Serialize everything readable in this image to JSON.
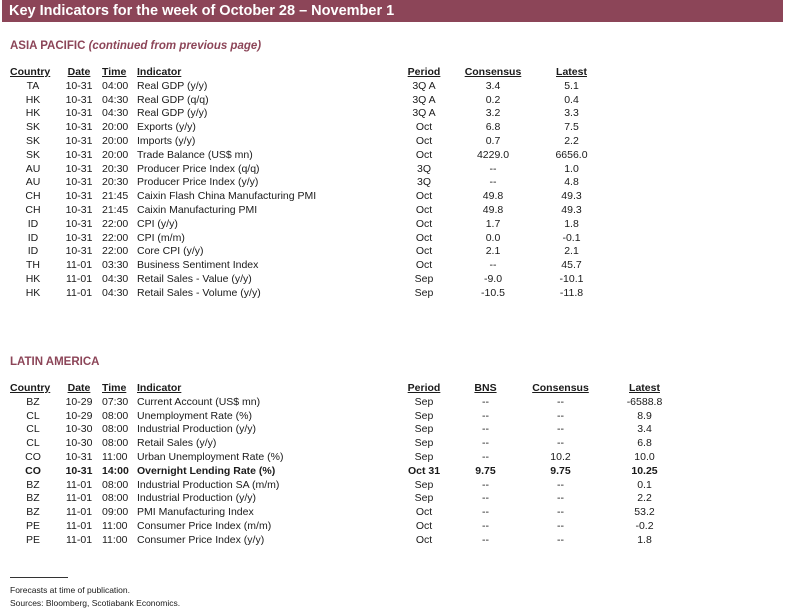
{
  "header": {
    "title": "Key Indicators for the week of October 28 – November 1"
  },
  "asia": {
    "title": "ASIA PACIFIC",
    "note": "(continued from previous page)",
    "headers": {
      "country": "Country",
      "date": "Date",
      "time": "Time",
      "indicator": "Indicator",
      "period": "Period",
      "consensus": "Consensus",
      "latest": "Latest"
    },
    "rows": [
      {
        "country": "TA",
        "date": "10-31",
        "time": "04:00",
        "indicator": "Real GDP (y/y)",
        "period": "3Q A",
        "consensus": "3.4",
        "latest": "5.1"
      },
      {
        "country": "HK",
        "date": "10-31",
        "time": "04:30",
        "indicator": "Real GDP (q/q)",
        "period": "3Q A",
        "consensus": "0.2",
        "latest": "0.4"
      },
      {
        "country": "HK",
        "date": "10-31",
        "time": "04:30",
        "indicator": "Real GDP (y/y)",
        "period": "3Q A",
        "consensus": "3.2",
        "latest": "3.3"
      },
      {
        "country": "SK",
        "date": "10-31",
        "time": "20:00",
        "indicator": "Exports (y/y)",
        "period": "Oct",
        "consensus": "6.8",
        "latest": "7.5"
      },
      {
        "country": "SK",
        "date": "10-31",
        "time": "20:00",
        "indicator": "Imports (y/y)",
        "period": "Oct",
        "consensus": "0.7",
        "latest": "2.2"
      },
      {
        "country": "SK",
        "date": "10-31",
        "time": "20:00",
        "indicator": "Trade Balance (US$ mn)",
        "period": "Oct",
        "consensus": "4229.0",
        "latest": "6656.0"
      },
      {
        "country": "AU",
        "date": "10-31",
        "time": "20:30",
        "indicator": "Producer Price Index (q/q)",
        "period": "3Q",
        "consensus": "--",
        "latest": "1.0"
      },
      {
        "country": "AU",
        "date": "10-31",
        "time": "20:30",
        "indicator": "Producer Price Index (y/y)",
        "period": "3Q",
        "consensus": "--",
        "latest": "4.8"
      },
      {
        "country": "CH",
        "date": "10-31",
        "time": "21:45",
        "indicator": "Caixin Flash China Manufacturing PMI",
        "period": "Oct",
        "consensus": "49.8",
        "latest": "49.3"
      },
      {
        "country": "CH",
        "date": "10-31",
        "time": "21:45",
        "indicator": "Caixin Manufacturing PMI",
        "period": "Oct",
        "consensus": "49.8",
        "latest": "49.3"
      },
      {
        "country": "ID",
        "date": "10-31",
        "time": "22:00",
        "indicator": "CPI (y/y)",
        "period": "Oct",
        "consensus": "1.7",
        "latest": "1.8"
      },
      {
        "country": "ID",
        "date": "10-31",
        "time": "22:00",
        "indicator": "CPI (m/m)",
        "period": "Oct",
        "consensus": "0.0",
        "latest": "-0.1"
      },
      {
        "country": "ID",
        "date": "10-31",
        "time": "22:00",
        "indicator": "Core CPI (y/y)",
        "period": "Oct",
        "consensus": "2.1",
        "latest": "2.1"
      },
      {
        "country": "TH",
        "date": "11-01",
        "time": "03:30",
        "indicator": "Business Sentiment Index",
        "period": "Oct",
        "consensus": "--",
        "latest": "45.7"
      },
      {
        "country": "HK",
        "date": "11-01",
        "time": "04:30",
        "indicator": "Retail Sales - Value (y/y)",
        "period": "Sep",
        "consensus": "-9.0",
        "latest": "-10.1"
      },
      {
        "country": "HK",
        "date": "11-01",
        "time": "04:30",
        "indicator": "Retail Sales - Volume (y/y)",
        "period": "Sep",
        "consensus": "-10.5",
        "latest": "-11.8"
      }
    ]
  },
  "latam": {
    "title": "LATIN AMERICA",
    "headers": {
      "country": "Country",
      "date": "Date",
      "time": "Time",
      "indicator": "Indicator",
      "period": "Period",
      "bns": "BNS",
      "consensus": "Consensus",
      "latest": "Latest"
    },
    "rows": [
      {
        "country": "BZ",
        "date": "10-29",
        "time": "07:30",
        "indicator": "Current Account (US$ mn)",
        "period": "Sep",
        "bns": "--",
        "consensus": "--",
        "latest": "-6588.8"
      },
      {
        "country": "CL",
        "date": "10-29",
        "time": "08:00",
        "indicator": "Unemployment Rate (%)",
        "period": "Sep",
        "bns": "--",
        "consensus": "--",
        "latest": "8.9"
      },
      {
        "country": "CL",
        "date": "10-30",
        "time": "08:00",
        "indicator": "Industrial Production (y/y)",
        "period": "Sep",
        "bns": "--",
        "consensus": "--",
        "latest": "3.4"
      },
      {
        "country": "CL",
        "date": "10-30",
        "time": "08:00",
        "indicator": "Retail Sales (y/y)",
        "period": "Sep",
        "bns": "--",
        "consensus": "--",
        "latest": "6.8"
      },
      {
        "country": "CO",
        "date": "10-31",
        "time": "11:00",
        "indicator": "Urban Unemployment Rate (%)",
        "period": "Sep",
        "bns": "--",
        "consensus": "10.2",
        "latest": "10.0"
      },
      {
        "country": "CO",
        "date": "10-31",
        "time": "14:00",
        "indicator": "Overnight Lending Rate (%)",
        "period": "Oct 31",
        "bns": "9.75",
        "consensus": "9.75",
        "latest": "10.25",
        "bold": true
      },
      {
        "country": "BZ",
        "date": "11-01",
        "time": "08:00",
        "indicator": "Industrial Production SA (m/m)",
        "period": "Sep",
        "bns": "--",
        "consensus": "--",
        "latest": "0.1"
      },
      {
        "country": "BZ",
        "date": "11-01",
        "time": "08:00",
        "indicator": "Industrial Production (y/y)",
        "period": "Sep",
        "bns": "--",
        "consensus": "--",
        "latest": "2.2"
      },
      {
        "country": "BZ",
        "date": "11-01",
        "time": "09:00",
        "indicator": "PMI Manufacturing Index",
        "period": "Oct",
        "bns": "--",
        "consensus": "--",
        "latest": "53.2"
      },
      {
        "country": "PE",
        "date": "11-01",
        "time": "11:00",
        "indicator": "Consumer Price Index (m/m)",
        "period": "Oct",
        "bns": "--",
        "consensus": "--",
        "latest": "-0.2"
      },
      {
        "country": "PE",
        "date": "11-01",
        "time": "11:00",
        "indicator": "Consumer Price Index (y/y)",
        "period": "Oct",
        "bns": "--",
        "consensus": "--",
        "latest": "1.8"
      }
    ]
  },
  "footer": {
    "line1": "Forecasts at time of publication.",
    "line2": "Sources: Bloomberg, Scotiabank Economics."
  }
}
